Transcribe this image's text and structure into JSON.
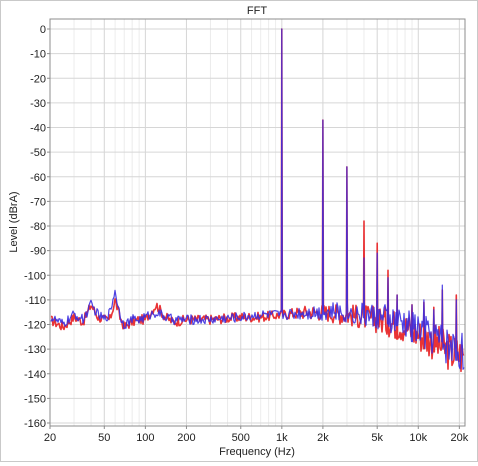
{
  "chart_data": {
    "type": "line",
    "title": "FFT",
    "xlabel": "Frequency (Hz)",
    "ylabel": "Level (dBrA)",
    "x_scale": "log",
    "xlim": [
      20,
      22000
    ],
    "ylim": [
      -160,
      5
    ],
    "grid": true,
    "x_ticks": [
      20,
      50,
      100,
      200,
      500,
      1000,
      2000,
      5000,
      10000,
      20000
    ],
    "x_tick_labels": [
      "20",
      "50",
      "100",
      "200",
      "500",
      "1k",
      "2k",
      "5k",
      "10k",
      "20k"
    ],
    "y_ticks": [
      0,
      -10,
      -20,
      -30,
      -40,
      -50,
      -60,
      -70,
      -80,
      -90,
      -100,
      -110,
      -120,
      -130,
      -140,
      -150,
      -160
    ],
    "y_tick_labels": [
      "0",
      "-10",
      "-20",
      "-30",
      "-40",
      "-50",
      "-60",
      "-70",
      "-80",
      "-90",
      "-100",
      "-110",
      "-120",
      "-130",
      "-140",
      "-150",
      "-160"
    ],
    "series": [
      {
        "color": "#e8282a",
        "floor": [
          [
            20,
            -118
          ],
          [
            25,
            -121
          ],
          [
            30,
            -117
          ],
          [
            35,
            -119
          ],
          [
            40,
            -112
          ],
          [
            45,
            -117
          ],
          [
            50,
            -118
          ],
          [
            55,
            -118
          ],
          [
            60,
            -110
          ],
          [
            65,
            -117
          ],
          [
            70,
            -121
          ],
          [
            80,
            -119
          ],
          [
            90,
            -118
          ],
          [
            100,
            -118
          ],
          [
            120,
            -112
          ],
          [
            140,
            -117
          ],
          [
            160,
            -119
          ],
          [
            200,
            -118
          ],
          [
            300,
            -118
          ],
          [
            500,
            -117
          ],
          [
            700,
            -117
          ],
          [
            1000,
            -116
          ],
          [
            1500,
            -115
          ],
          [
            2000,
            -115
          ],
          [
            3000,
            -116
          ],
          [
            4000,
            -117
          ],
          [
            5000,
            -118
          ],
          [
            6000,
            -119
          ],
          [
            8000,
            -121
          ],
          [
            10000,
            -124
          ],
          [
            13000,
            -127
          ],
          [
            17000,
            -131
          ],
          [
            22000,
            -133
          ]
        ],
        "peaks": [
          [
            1000,
            0
          ],
          [
            2000,
            -37
          ],
          [
            3000,
            -56
          ],
          [
            4000,
            -78
          ],
          [
            5000,
            -87
          ],
          [
            6000,
            -98
          ],
          [
            7000,
            -108
          ],
          [
            9000,
            -112
          ],
          [
            11000,
            -111
          ],
          [
            13000,
            -113
          ],
          [
            15000,
            -106
          ],
          [
            19000,
            -108
          ]
        ]
      },
      {
        "color": "#3a2ce0",
        "floor": [
          [
            20,
            -117
          ],
          [
            25,
            -120
          ],
          [
            30,
            -116
          ],
          [
            35,
            -118
          ],
          [
            40,
            -112
          ],
          [
            45,
            -116
          ],
          [
            50,
            -118
          ],
          [
            55,
            -115
          ],
          [
            60,
            -106
          ],
          [
            65,
            -116
          ],
          [
            70,
            -120
          ],
          [
            80,
            -118
          ],
          [
            90,
            -118
          ],
          [
            100,
            -117
          ],
          [
            120,
            -115
          ],
          [
            140,
            -117
          ],
          [
            160,
            -118
          ],
          [
            200,
            -118
          ],
          [
            300,
            -118
          ],
          [
            500,
            -117
          ],
          [
            700,
            -116
          ],
          [
            1000,
            -116
          ],
          [
            1500,
            -115
          ],
          [
            2000,
            -115
          ],
          [
            3000,
            -115
          ],
          [
            4000,
            -116
          ],
          [
            5000,
            -117
          ],
          [
            6000,
            -118
          ],
          [
            8000,
            -120
          ],
          [
            10000,
            -122
          ],
          [
            13000,
            -125
          ],
          [
            17000,
            -129
          ],
          [
            22000,
            -131
          ]
        ],
        "peaks": [
          [
            1000,
            0
          ],
          [
            2000,
            -37
          ],
          [
            3000,
            -56
          ],
          [
            4000,
            -93
          ],
          [
            5000,
            -91
          ],
          [
            6000,
            -101
          ],
          [
            7000,
            -108
          ],
          [
            9000,
            -112
          ],
          [
            11000,
            -110
          ],
          [
            13000,
            -114
          ],
          [
            15000,
            -104
          ],
          [
            19000,
            -110
          ]
        ]
      }
    ]
  }
}
